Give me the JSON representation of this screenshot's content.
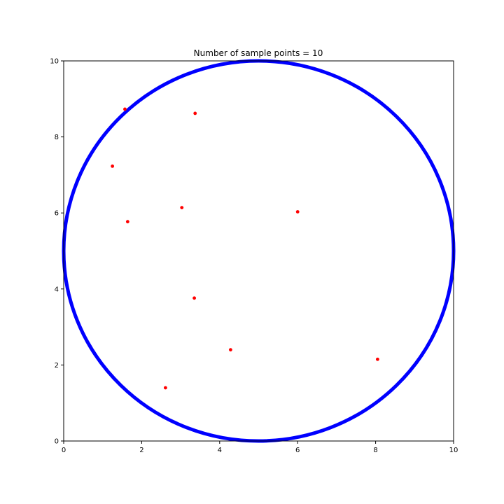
{
  "chart_data": {
    "type": "scatter",
    "title": "Number of sample points = 10",
    "xlabel": "",
    "ylabel": "",
    "xlim": [
      0,
      10
    ],
    "ylim": [
      0,
      10
    ],
    "x_ticks": [
      0,
      2,
      4,
      6,
      8,
      10
    ],
    "y_ticks": [
      0,
      2,
      4,
      6,
      8,
      10
    ],
    "x_tick_labels": [
      "0",
      "2",
      "4",
      "6",
      "8",
      "10"
    ],
    "y_tick_labels": [
      "0",
      "2",
      "4",
      "6",
      "8",
      "10"
    ],
    "grid": false,
    "circle": {
      "center": [
        5,
        5
      ],
      "radius": 5,
      "color": "#0000ff"
    },
    "series": [
      {
        "color": "#ff0000",
        "points": [
          {
            "x": 1.57,
            "y": 8.73
          },
          {
            "x": 3.37,
            "y": 8.62
          },
          {
            "x": 1.25,
            "y": 7.23
          },
          {
            "x": 3.03,
            "y": 6.14
          },
          {
            "x": 1.64,
            "y": 5.77
          },
          {
            "x": 6.0,
            "y": 6.03
          },
          {
            "x": 3.35,
            "y": 3.76
          },
          {
            "x": 4.28,
            "y": 2.4
          },
          {
            "x": 8.05,
            "y": 2.15
          },
          {
            "x": 2.61,
            "y": 1.4
          }
        ]
      }
    ]
  }
}
